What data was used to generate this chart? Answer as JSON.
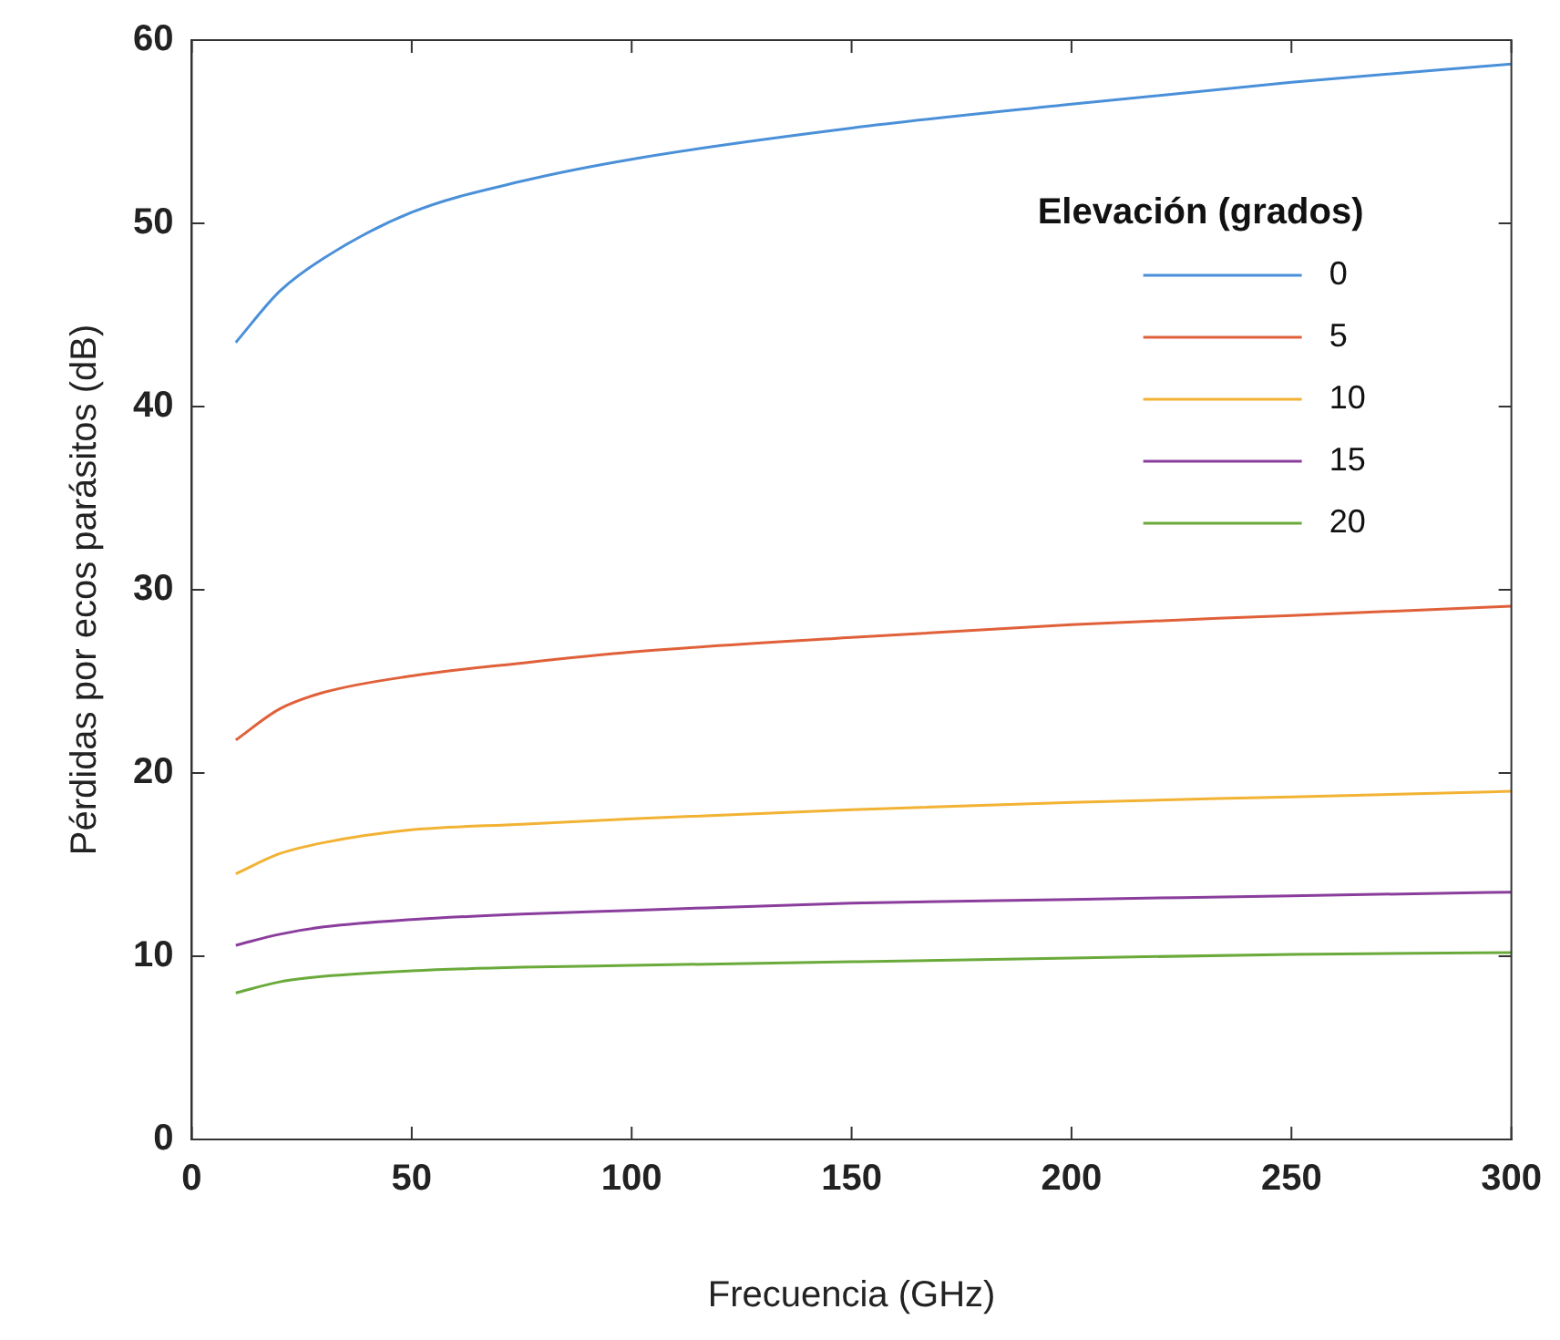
{
  "chart_data": {
    "type": "line",
    "xlabel": "Frecuencia (GHz)",
    "ylabel": "Pérdidas por ecos parásitos (dB)",
    "legend_title": "Elevación (grados)",
    "x": [
      10,
      20,
      30,
      50,
      75,
      100,
      150,
      200,
      250,
      300
    ],
    "xlim": [
      0,
      300
    ],
    "xticks": [
      0,
      50,
      100,
      150,
      200,
      250,
      300
    ],
    "ylim": [
      0,
      60
    ],
    "yticks": [
      0,
      10,
      20,
      30,
      40,
      50,
      60
    ],
    "grid": false,
    "legend": "top right",
    "marker": "none",
    "line_style": "solid",
    "series": [
      {
        "name": "0",
        "color": "#4a90d9",
        "values": [
          43.5,
          46.3,
          48.1,
          50.6,
          52.3,
          53.5,
          55.2,
          56.5,
          57.7,
          58.7
        ]
      },
      {
        "name": "5",
        "color": "#e0603a",
        "values": [
          21.8,
          23.5,
          24.4,
          25.3,
          26.0,
          26.6,
          27.4,
          28.1,
          28.6,
          29.1
        ]
      },
      {
        "name": "10",
        "color": "#f2b233",
        "values": [
          14.5,
          15.6,
          16.2,
          16.9,
          17.2,
          17.5,
          18.0,
          18.4,
          18.7,
          19.0
        ]
      },
      {
        "name": "15",
        "color": "#8a3d9c",
        "values": [
          10.6,
          11.2,
          11.6,
          12.0,
          12.3,
          12.5,
          12.9,
          13.1,
          13.3,
          13.5
        ]
      },
      {
        "name": "20",
        "color": "#6aaa3a",
        "values": [
          8.0,
          8.6,
          8.9,
          9.2,
          9.4,
          9.5,
          9.7,
          9.9,
          10.1,
          10.2
        ]
      }
    ]
  }
}
